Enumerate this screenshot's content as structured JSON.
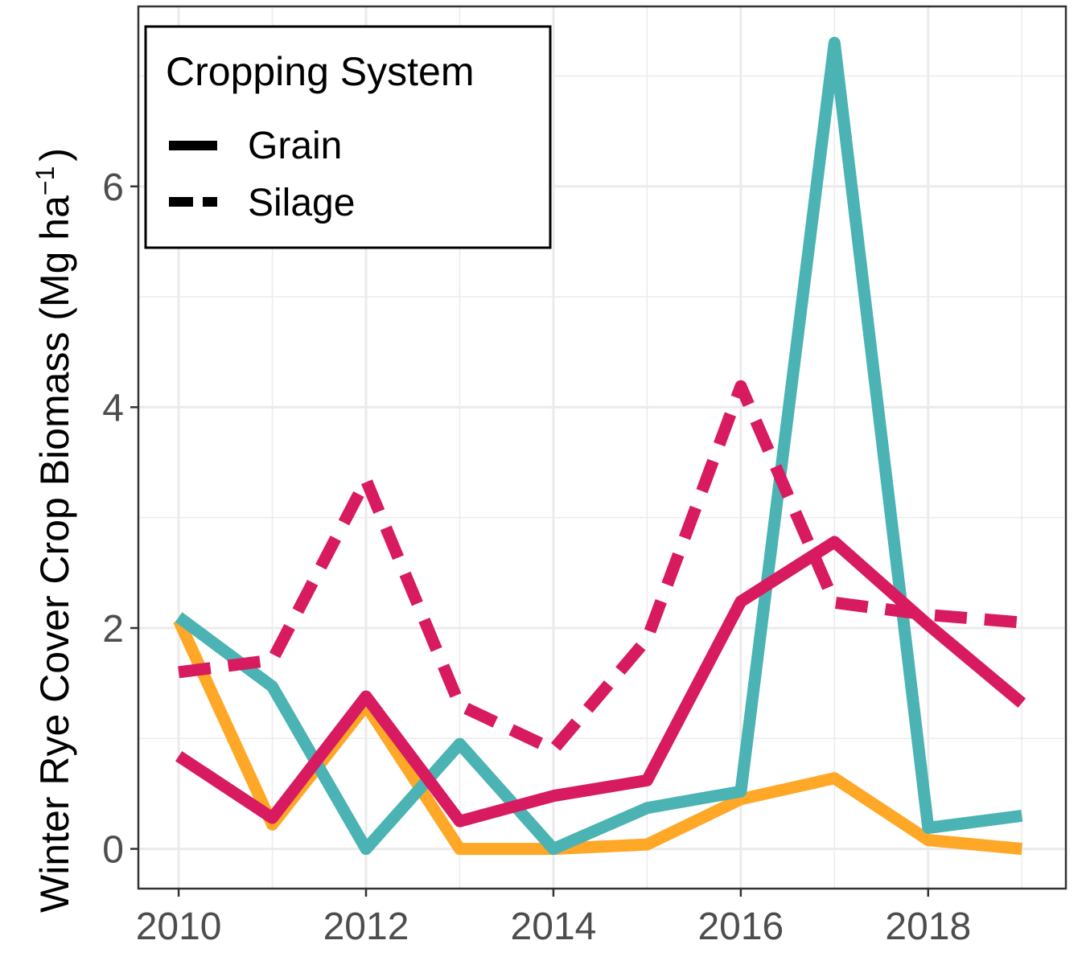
{
  "chart_data": {
    "type": "line",
    "title": "",
    "xlabel": "",
    "ylabel": "Winter Rye Cover Crop Biomass (Mg ha",
    "ylabel_sup": "−1",
    "ylabel_close": ")",
    "x": [
      2010,
      2011,
      2012,
      2013,
      2014,
      2015,
      2016,
      2017,
      2018,
      2019
    ],
    "xlim": [
      2009.57,
      2019.47
    ],
    "ylim": [
      -0.36,
      7.63
    ],
    "x_ticks": [
      2010,
      2012,
      2014,
      2016,
      2018
    ],
    "y_ticks": [
      0,
      2,
      4,
      6
    ],
    "x_tick_labels": [
      "2010",
      "2012",
      "2014",
      "2016",
      "2018"
    ],
    "y_tick_labels": [
      "0",
      "2",
      "4",
      "6"
    ],
    "grid": true,
    "legend": {
      "title": "Cropping System",
      "placement": "top-left",
      "items": [
        {
          "label": "Grain",
          "linetype": "solid"
        },
        {
          "label": "Silage",
          "linetype": "dashed"
        }
      ]
    },
    "series": [
      {
        "color": "#FFA726",
        "linetype": "solid",
        "values": [
          2.07,
          0.22,
          1.3,
          0.0,
          0.0,
          0.04,
          0.45,
          0.64,
          0.08,
          0.0
        ]
      },
      {
        "color": "#4BB3B3",
        "linetype": "solid",
        "values": [
          2.1,
          1.47,
          0.0,
          0.95,
          0.0,
          0.37,
          0.52,
          7.3,
          0.19,
          0.3
        ]
      },
      {
        "color": "#D81B60",
        "linetype": "solid",
        "values": [
          0.84,
          0.28,
          1.38,
          0.25,
          0.48,
          0.62,
          2.24,
          2.78,
          2.03,
          1.32
        ]
      },
      {
        "color": "#D81B60",
        "linetype": "dashed",
        "values": [
          1.6,
          1.71,
          3.34,
          1.3,
          0.9,
          1.9,
          4.19,
          2.23,
          2.12,
          2.05
        ]
      }
    ]
  }
}
